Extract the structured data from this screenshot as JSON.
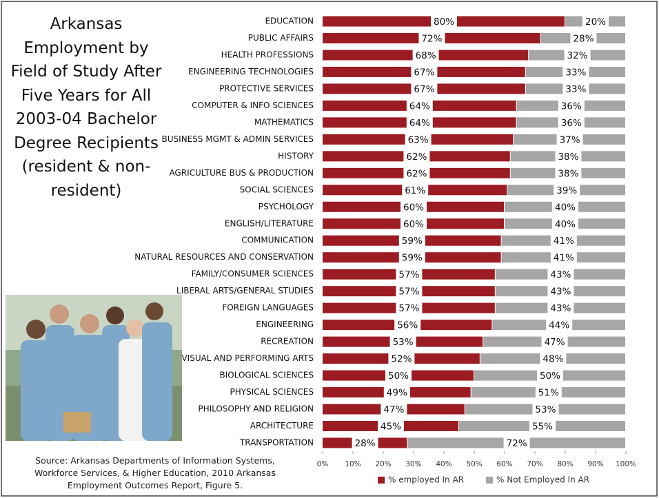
{
  "chart_data": {
    "type": "stacked-bar-horizontal",
    "title": "Arkansas Employment by Field of Study After Five Years for All 2003-04 Bachelor Degree Recipients (resident & non-resident)",
    "source": "Source: Arkansas Departments of Information Systems, Workforce Services, & Higher Education, 2010 Arkansas Employment Outcomes Report, Figure 5.",
    "categories": [
      "EDUCATION",
      "PUBLIC AFFAIRS",
      "HEALTH PROFESSIONS",
      "ENGINEERING TECHNOLOGIES",
      "PROTECTIVE SERVICES",
      "COMPUTER & INFO SCIENCES",
      "MATHEMATICS",
      "BUSINESS MGMT & ADMIN SERVICES",
      "HISTORY",
      "AGRICULTURE BUS & PRODUCTION",
      "SOCIAL SCIENCES",
      "PSYCHOLOGY",
      "ENGLISH/LITERATURE",
      "COMMUNICATION",
      "NATURAL RESOURCES AND CONSERVATION",
      "FAMILY/CONSUMER SCIENCES",
      "LIBERAL ARTS/GENERAL STUDIES",
      "FOREIGN LANGUAGES",
      "ENGINEERING",
      "RECREATION",
      "VISUAL AND PERFORMING ARTS",
      "BIOLOGICAL SCIENCES",
      "PHYSICAL SCIENCES",
      "PHILOSOPHY AND RELIGION",
      "ARCHITECTURE",
      "TRANSPORTATION"
    ],
    "series": [
      {
        "name": "% employed In AR",
        "color": "#9b1c22",
        "values": [
          80,
          72,
          68,
          67,
          67,
          64,
          64,
          63,
          62,
          62,
          61,
          60,
          60,
          59,
          59,
          57,
          57,
          57,
          56,
          53,
          52,
          50,
          49,
          47,
          45,
          28
        ],
        "value_labels": [
          "80%",
          "72%",
          "68%",
          "67%",
          "67%",
          "64%",
          "64%",
          "63%",
          "62%",
          "62%",
          "61%",
          "60%",
          "60%",
          "59%",
          "59%",
          "57%",
          "57%",
          "57%",
          "56%",
          "53%",
          "52%",
          "50%",
          "49%",
          "47%",
          "45%",
          "28%"
        ]
      },
      {
        "name": "% Not Employed In AR",
        "color": "#a6a6a6",
        "values": [
          20,
          28,
          32,
          33,
          33,
          36,
          36,
          37,
          38,
          38,
          39,
          40,
          40,
          41,
          41,
          43,
          43,
          43,
          44,
          47,
          48,
          50,
          51,
          53,
          55,
          72
        ],
        "value_labels": [
          "20%",
          "28%",
          "32%",
          "33%",
          "33%",
          "36%",
          "36%",
          "37%",
          "38%",
          "38%",
          "39%",
          "40%",
          "40%",
          "41%",
          "41%",
          "43%",
          "43%",
          "43%",
          "44%",
          "47%",
          "48%",
          "50%",
          "51%",
          "53%",
          "55%",
          "72%"
        ]
      }
    ],
    "xlim": [
      0,
      100
    ],
    "xticks": [
      {
        "value": 0,
        "label": "0%"
      },
      {
        "value": 10,
        "label": "10%"
      },
      {
        "value": 20,
        "label": "20%"
      },
      {
        "value": 30,
        "label": "30%"
      },
      {
        "value": 40,
        "label": "40%"
      },
      {
        "value": 50,
        "label": "50%"
      },
      {
        "value": 60,
        "label": "60%"
      },
      {
        "value": 70,
        "label": "70%"
      },
      {
        "value": 80,
        "label": "80%"
      },
      {
        "value": 90,
        "label": "90%"
      },
      {
        "value": 100,
        "label": "100%"
      }
    ],
    "legend": "bottom"
  }
}
